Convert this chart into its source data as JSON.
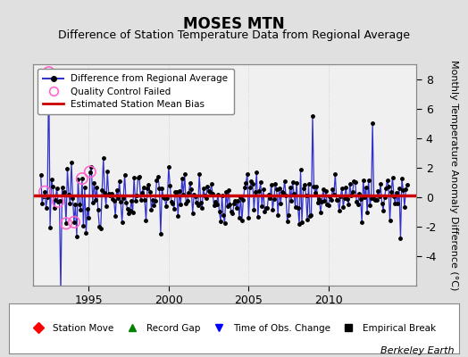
{
  "title": "MOSES MTN",
  "subtitle": "Difference of Station Temperature Data from Regional Average",
  "ylabel_right": "Monthly Temperature Anomaly Difference (°C)",
  "bias_value": 0.1,
  "xlim": [
    1991.5,
    2015.5
  ],
  "ylim": [
    -6,
    9
  ],
  "yticks": [
    -4,
    -2,
    0,
    2,
    4,
    6,
    8
  ],
  "xticks": [
    1995,
    2000,
    2005,
    2010
  ],
  "bg_color": "#e0e0e0",
  "plot_bg_color": "#f0f0f0",
  "line_color": "#3333cc",
  "marker_color": "#000000",
  "bias_color": "#cc0000",
  "qc_color": "#ff66cc",
  "berkeley_earth_text": "Berkeley Earth",
  "legend1_labels": [
    "Difference from Regional Average",
    "Quality Control Failed",
    "Estimated Station Mean Bias"
  ],
  "legend2_labels": [
    "Station Move",
    "Record Gap",
    "Time of Obs. Change",
    "Empirical Break"
  ],
  "grid_color": "#cccccc",
  "title_fontsize": 12,
  "subtitle_fontsize": 9,
  "tick_fontsize": 9,
  "ylabel_fontsize": 8
}
